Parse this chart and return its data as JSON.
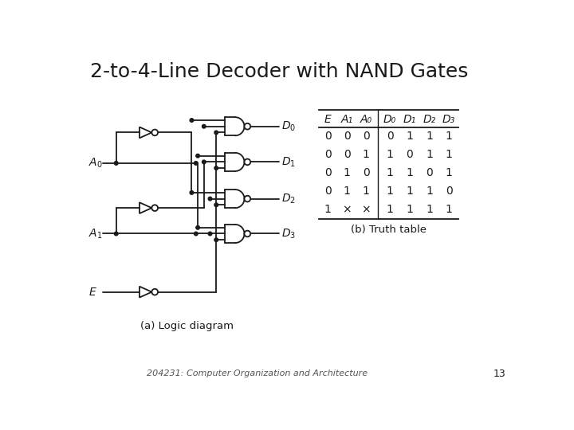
{
  "title": "2-to-4-Line Decoder with NAND Gates",
  "subtitle": "204231: Computer Organization and Architecture",
  "page_num": "13",
  "caption_left": "(a) Logic diagram",
  "caption_right": "(b) Truth table",
  "truth_table": {
    "headers": [
      "E",
      "A₁",
      "A₀",
      "D₀",
      "D₁",
      "D₂",
      "D₃"
    ],
    "rows": [
      [
        "0",
        "0",
        "0",
        "0",
        "1",
        "1",
        "1"
      ],
      [
        "0",
        "0",
        "1",
        "1",
        "0",
        "1",
        "1"
      ],
      [
        "0",
        "1",
        "0",
        "1",
        "1",
        "0",
        "1"
      ],
      [
        "0",
        "1",
        "1",
        "1",
        "1",
        "1",
        "0"
      ],
      [
        "1",
        "×",
        "×",
        "1",
        "1",
        "1",
        "1"
      ]
    ]
  },
  "bg_color": "#ffffff",
  "line_color": "#1a1a1a",
  "text_color": "#1a1a1a"
}
